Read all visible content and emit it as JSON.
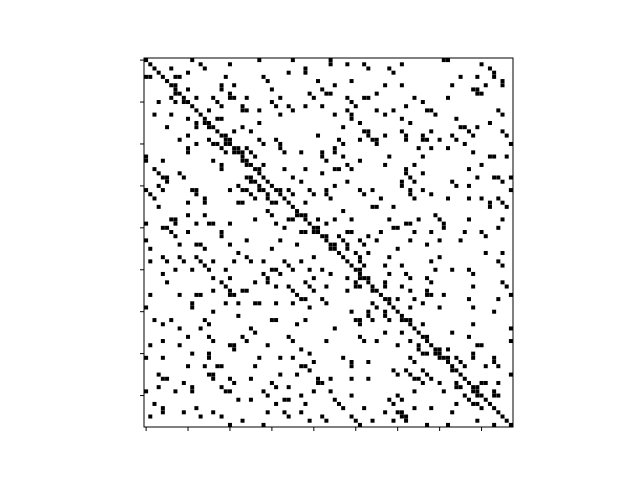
{
  "chart_data": {
    "type": "scatter",
    "title": "",
    "xlabel": "",
    "ylabel": "",
    "xlim": [
      0,
      88
    ],
    "ylim": [
      88,
      0
    ],
    "x_ticks": [
      0,
      10,
      20,
      30,
      40,
      50,
      60,
      70,
      80
    ],
    "y_ticks": [
      0,
      10,
      20,
      30,
      40,
      50,
      60,
      70,
      80
    ],
    "tick_labels_visible": false,
    "grid": false,
    "legend": "none",
    "marker": "square",
    "marker_color": "#000000",
    "diagonal_offsets": [
      0,
      -1,
      1,
      -3,
      3,
      -4,
      4,
      -7,
      7,
      -8,
      8,
      -11,
      11,
      -12,
      12,
      -15,
      15,
      -19,
      19,
      -20,
      20,
      -23,
      23,
      -24,
      24,
      -27,
      27,
      -31,
      31,
      -32,
      32,
      -35,
      35,
      -36,
      36,
      -39,
      39,
      -43,
      43,
      -44,
      44,
      -47,
      47,
      -48,
      48,
      -51,
      51,
      -55,
      55,
      -56,
      56,
      -59,
      59,
      -60,
      60,
      -63,
      63,
      -67,
      67,
      -68,
      68,
      -71,
      71,
      -72,
      72,
      -75,
      75,
      -79,
      79,
      -80,
      80,
      -83,
      83,
      -84,
      84,
      -87,
      87
    ],
    "matrix_size": 88,
    "density": 0.22
  }
}
